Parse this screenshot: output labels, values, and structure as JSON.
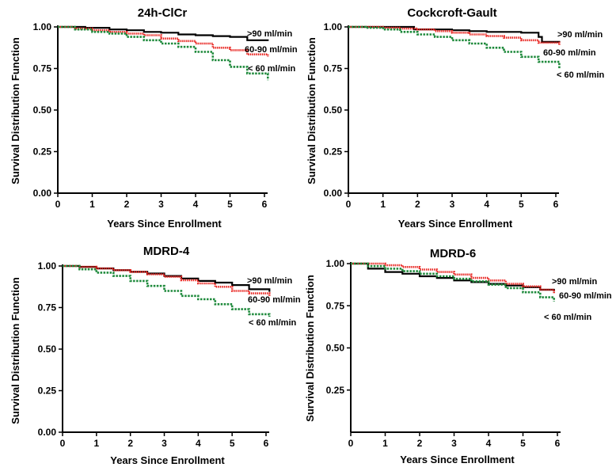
{
  "chart_data": [
    {
      "type": "line",
      "title": "24h-ClCr",
      "xlabel": "Years Since Enrollment",
      "ylabel": "Survival Distribution Function",
      "xlim": [
        0,
        6
      ],
      "ylim": [
        0,
        1
      ],
      "xticks": [
        "0",
        "1",
        "2",
        "3",
        "4",
        "5",
        "6"
      ],
      "yticks": [
        "0.00",
        "0.25",
        "0.50",
        "0.75",
        "1.00"
      ],
      "series": [
        {
          "name": ">90 ml/min",
          "color": "#000000",
          "x": [
            0,
            0.8,
            1.5,
            2.0,
            2.5,
            3.0,
            3.5,
            4.0,
            4.5,
            5.0,
            5.5,
            6.1
          ],
          "y": [
            1.0,
            0.995,
            0.985,
            0.98,
            0.97,
            0.965,
            0.955,
            0.95,
            0.945,
            0.94,
            0.92,
            0.915
          ]
        },
        {
          "name": "60-90 ml/min",
          "color": "#e8231f",
          "x": [
            0,
            0.5,
            1.0,
            1.5,
            2.0,
            2.5,
            3.0,
            3.5,
            4.0,
            4.5,
            5.0,
            5.5,
            6.1
          ],
          "y": [
            1.0,
            0.99,
            0.98,
            0.97,
            0.96,
            0.95,
            0.93,
            0.915,
            0.9,
            0.875,
            0.86,
            0.835,
            0.82
          ]
        },
        {
          "name": "< 60 ml/min",
          "color": "#1f8a3c",
          "x": [
            0,
            0.5,
            1.0,
            1.5,
            2.0,
            2.5,
            3.0,
            3.5,
            4.0,
            4.5,
            5.0,
            5.5,
            6.1
          ],
          "y": [
            1.0,
            0.985,
            0.97,
            0.96,
            0.94,
            0.92,
            0.9,
            0.88,
            0.85,
            0.8,
            0.76,
            0.72,
            0.68
          ]
        }
      ]
    },
    {
      "type": "line",
      "title": "Cockcroft-Gault",
      "xlabel": "Years Since Enrollment",
      "ylabel": "Survival Distribution Function",
      "xlim": [
        0,
        6
      ],
      "ylim": [
        0,
        1
      ],
      "xticks": [
        "0",
        "1",
        "2",
        "3",
        "4",
        "5",
        "6"
      ],
      "yticks": [
        "0.00",
        "0.25",
        "0.50",
        "0.75",
        "1.00"
      ],
      "series": [
        {
          "name": ">90 ml/min",
          "color": "#000000",
          "x": [
            0,
            1.0,
            1.9,
            2.5,
            3.0,
            3.5,
            4.0,
            4.5,
            5.0,
            5.5,
            5.6,
            6.1
          ],
          "y": [
            1.0,
            1.0,
            0.985,
            0.985,
            0.98,
            0.975,
            0.97,
            0.97,
            0.965,
            0.94,
            0.91,
            0.905
          ]
        },
        {
          "name": "60-90 ml/min",
          "color": "#e8231f",
          "x": [
            0,
            0.5,
            1.0,
            1.5,
            2.0,
            2.5,
            3.0,
            3.5,
            4.0,
            4.5,
            5.0,
            5.5,
            6.1
          ],
          "y": [
            1.0,
            1.0,
            0.995,
            0.99,
            0.985,
            0.975,
            0.965,
            0.955,
            0.945,
            0.935,
            0.92,
            0.905,
            0.89
          ]
        },
        {
          "name": "< 60 ml/min",
          "color": "#1f8a3c",
          "x": [
            0,
            0.5,
            1.0,
            1.5,
            2.0,
            2.5,
            3.0,
            3.5,
            4.0,
            4.5,
            5.0,
            5.5,
            6.1
          ],
          "y": [
            1.0,
            0.995,
            0.985,
            0.97,
            0.955,
            0.94,
            0.92,
            0.9,
            0.875,
            0.85,
            0.82,
            0.79,
            0.75
          ]
        }
      ]
    },
    {
      "type": "line",
      "title": "MDRD-4",
      "xlabel": "Years Since Enrollment",
      "ylabel": "Survival Distribution Function",
      "xlim": [
        0,
        6
      ],
      "ylim": [
        0,
        1
      ],
      "xticks": [
        "0",
        "1",
        "2",
        "3",
        "4",
        "5",
        "6"
      ],
      "yticks": [
        "0.00",
        "0.25",
        "0.50",
        "0.75",
        "1.00"
      ],
      "series": [
        {
          "name": ">90 ml/min",
          "color": "#000000",
          "x": [
            0,
            0.5,
            1.0,
            1.5,
            2.0,
            2.5,
            3.0,
            3.5,
            4.0,
            4.5,
            5.0,
            5.5,
            6.1
          ],
          "y": [
            1.0,
            0.995,
            0.985,
            0.975,
            0.965,
            0.955,
            0.94,
            0.925,
            0.91,
            0.9,
            0.885,
            0.86,
            0.845
          ]
        },
        {
          "name": "60-90 ml/min",
          "color": "#e8231f",
          "x": [
            0,
            0.5,
            1.0,
            1.5,
            2.0,
            2.5,
            3.0,
            3.5,
            4.0,
            4.5,
            5.0,
            5.5,
            6.1
          ],
          "y": [
            1.0,
            0.995,
            0.985,
            0.975,
            0.965,
            0.95,
            0.935,
            0.915,
            0.895,
            0.875,
            0.85,
            0.835,
            0.82
          ]
        },
        {
          "name": "< 60 ml/min",
          "color": "#1f8a3c",
          "x": [
            0,
            0.5,
            1.0,
            1.5,
            2.0,
            2.5,
            3.0,
            3.5,
            4.0,
            4.5,
            5.0,
            5.5,
            6.1
          ],
          "y": [
            1.0,
            0.98,
            0.96,
            0.94,
            0.91,
            0.88,
            0.85,
            0.82,
            0.8,
            0.77,
            0.74,
            0.71,
            0.695
          ]
        }
      ]
    },
    {
      "type": "line",
      "title": "MDRD-6",
      "xlabel": "Years Since Enrollment",
      "ylabel": "Survival Distribution Function",
      "xlim": [
        0,
        6
      ],
      "ylim": [
        0,
        1
      ],
      "xticks": [
        "0",
        "1",
        "2",
        "3",
        "4",
        "5",
        "6"
      ],
      "yticks": [
        "0.25",
        "0.50",
        "0.75",
        "1.00"
      ],
      "series": [
        {
          "name": ">90 ml/min",
          "color": "#000000",
          "x": [
            0,
            0.5,
            1.0,
            1.5,
            2.0,
            2.5,
            3.0,
            3.5,
            4.0,
            4.5,
            5.0,
            5.5,
            5.9
          ],
          "y": [
            1.0,
            0.97,
            0.95,
            0.94,
            0.925,
            0.915,
            0.9,
            0.89,
            0.88,
            0.87,
            0.86,
            0.845,
            0.835
          ]
        },
        {
          "name": "60-90 ml/min",
          "color": "#e8231f",
          "x": [
            0,
            0.5,
            1.0,
            1.5,
            2.0,
            2.5,
            3.0,
            3.5,
            4.0,
            4.5,
            5.0,
            5.5,
            5.9
          ],
          "y": [
            1.0,
            1.0,
            0.99,
            0.98,
            0.965,
            0.95,
            0.935,
            0.915,
            0.9,
            0.88,
            0.865,
            0.845,
            0.825
          ]
        },
        {
          "name": "< 60 ml/min",
          "color": "#1f8a3c",
          "x": [
            0,
            0.5,
            1.0,
            1.5,
            2.0,
            2.5,
            3.0,
            3.5,
            4.0,
            4.5,
            5.0,
            5.5,
            5.9
          ],
          "y": [
            1.0,
            0.985,
            0.97,
            0.955,
            0.94,
            0.925,
            0.91,
            0.895,
            0.875,
            0.855,
            0.83,
            0.8,
            0.775
          ]
        }
      ]
    }
  ]
}
